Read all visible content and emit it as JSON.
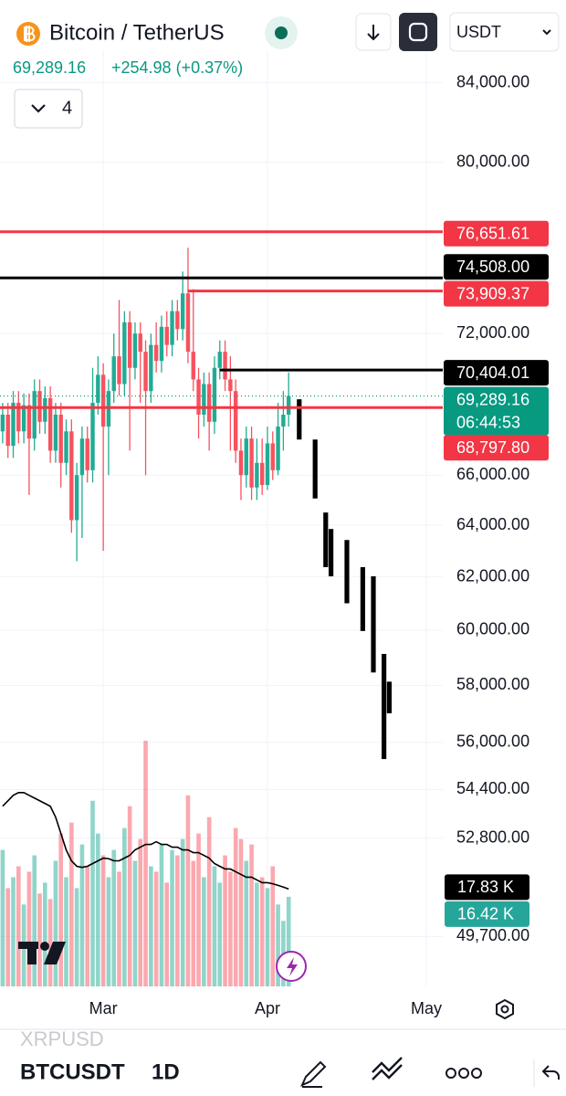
{
  "header": {
    "title": "Bitcoin / TetherUS",
    "price": "69,289.16",
    "change": "+254.98 (+0.37%)",
    "currency": "USDT",
    "indicator_count": "4"
  },
  "toolbar": {
    "symbol": "BTCUSDT",
    "interval": "1D",
    "next_symbol": "XRPUSD"
  },
  "chart_data": {
    "type": "candlestick",
    "log_scale": true,
    "grid": true,
    "up_color": "#22ab94",
    "down_color": "#f7525f",
    "projection_color": "#000000",
    "xlim": [
      -0.5,
      83.1
    ],
    "xticks": [
      {
        "value": 19,
        "label": "Mar"
      },
      {
        "value": 50,
        "label": "Apr"
      },
      {
        "value": 80,
        "label": "May"
      }
    ],
    "ylim": [
      48200,
      85700
    ],
    "yticks": [
      {
        "value": 84000,
        "label": "84,000.00"
      },
      {
        "value": 80000,
        "label": "80,000.00"
      },
      {
        "value": 72000,
        "label": "72,000.00"
      },
      {
        "value": 66000,
        "label": "66,000.00"
      },
      {
        "value": 64000,
        "label": "64,000.00"
      },
      {
        "value": 62000,
        "label": "62,000.00"
      },
      {
        "value": 60000,
        "label": "60,000.00"
      },
      {
        "value": 58000,
        "label": "58,000.00"
      },
      {
        "value": 56000,
        "label": "56,000.00"
      },
      {
        "value": 54400,
        "label": "54,400.00"
      },
      {
        "value": 52800,
        "label": "52,800.00"
      },
      {
        "value": 49700,
        "label": "49,700.00"
      }
    ],
    "ohlc": [
      [
        67800,
        69000,
        67300,
        68500
      ],
      [
        68500,
        69000,
        66700,
        67200
      ],
      [
        67200,
        69500,
        66700,
        69000
      ],
      [
        69000,
        69500,
        67300,
        67800
      ],
      [
        67800,
        69400,
        67300,
        68900
      ],
      [
        68900,
        69400,
        65200,
        67500
      ],
      [
        67500,
        70000,
        67000,
        69500
      ],
      [
        69500,
        70000,
        67700,
        68200
      ],
      [
        68200,
        69700,
        67700,
        69200
      ],
      [
        69200,
        69700,
        66500,
        67000
      ],
      [
        67000,
        69000,
        66500,
        68500
      ],
      [
        68500,
        69000,
        65500,
        66500
      ],
      [
        66500,
        68300,
        66000,
        67800
      ],
      [
        67800,
        68300,
        63700,
        64200
      ],
      [
        64200,
        66500,
        62600,
        66000
      ],
      [
        66000,
        68000,
        63500,
        67500
      ],
      [
        67500,
        68000,
        65700,
        66200
      ],
      [
        66200,
        70500,
        65700,
        69000
      ],
      [
        69000,
        71000,
        68500,
        70200
      ],
      [
        70200,
        70700,
        63000,
        68000
      ],
      [
        68000,
        70000,
        66000,
        69500
      ],
      [
        69500,
        72000,
        69000,
        71000
      ],
      [
        71000,
        73500,
        69300,
        69800
      ],
      [
        69800,
        73000,
        69300,
        72500
      ],
      [
        72500,
        73000,
        67000,
        70500
      ],
      [
        70500,
        72500,
        70000,
        72000
      ],
      [
        72000,
        72500,
        69000,
        71200
      ],
      [
        71200,
        71700,
        66000,
        69500
      ],
      [
        69500,
        72000,
        69000,
        71500
      ],
      [
        71500,
        72500,
        70300,
        70800
      ],
      [
        70800,
        72800,
        70300,
        72300
      ],
      [
        72300,
        73000,
        71000,
        71500
      ],
      [
        71500,
        73500,
        71000,
        73000
      ],
      [
        73000,
        73500,
        71700,
        72200
      ],
      [
        72200,
        74800,
        71700,
        73800
      ],
      [
        73800,
        75900,
        70700,
        71200
      ],
      [
        71200,
        74000,
        69500,
        70000
      ],
      [
        70000,
        70500,
        67500,
        68500
      ],
      [
        68500,
        70300,
        68000,
        69800
      ],
      [
        69800,
        70300,
        67000,
        68200
      ],
      [
        68200,
        71000,
        67700,
        70500
      ],
      [
        70500,
        71700,
        70000,
        71200
      ],
      [
        71200,
        71700,
        69500,
        70000
      ],
      [
        70000,
        71000,
        67000,
        69500
      ],
      [
        69500,
        70000,
        66500,
        67000
      ],
      [
        67000,
        67500,
        65000,
        66000
      ],
      [
        66000,
        68000,
        65500,
        67500
      ],
      [
        67500,
        68000,
        65000,
        65500
      ],
      [
        65500,
        67500,
        65000,
        66500
      ],
      [
        66500,
        67500,
        65200,
        65600
      ],
      [
        65600,
        68000,
        65400,
        67300
      ],
      [
        67300,
        67800,
        65800,
        66200
      ],
      [
        66200,
        69000,
        66000,
        68000
      ],
      [
        68000,
        69500,
        67000,
        68500
      ],
      [
        68500,
        70300,
        68000,
        69289.16
      ]
    ],
    "projection": [
      {
        "x": 56,
        "high": 69150,
        "low": 67460
      },
      {
        "x": 59,
        "high": 67460,
        "low": 65060
      },
      {
        "x": 61,
        "high": 64500,
        "low": 62370
      },
      {
        "x": 62,
        "high": 63850,
        "low": 62020
      },
      {
        "x": 65,
        "high": 63420,
        "low": 61000
      },
      {
        "x": 68,
        "high": 62370,
        "low": 59970
      },
      {
        "x": 70,
        "high": 62020,
        "low": 58460
      },
      {
        "x": 72,
        "high": 59130,
        "low": 55430
      },
      {
        "x": 73,
        "high": 58130,
        "low": 57010
      }
    ],
    "price_lines": [
      {
        "value": 76651.61,
        "label": "76,651.61",
        "color": "#f23645"
      },
      {
        "value": 74508,
        "label": "74,508.00",
        "color": "#000000"
      },
      {
        "value": 73909.37,
        "label": "73,909.37",
        "color": "#f23645",
        "from_x": 35
      },
      {
        "value": 70404.01,
        "label": "70,404.01",
        "color": "#000000",
        "from_x": 41
      },
      {
        "value": 69289.16,
        "label": "69,289.16",
        "countdown": "06:44:53",
        "color": "#089981",
        "dotted": true
      },
      {
        "value": 68797.8,
        "label": "68,797.80",
        "color": "#f23645"
      }
    ],
    "volume": {
      "ylim": [
        0,
        45
      ],
      "ma_color": "#000000",
      "values": [
        25,
        18,
        20,
        22,
        15,
        21,
        24,
        17,
        19,
        16,
        23,
        28,
        20,
        30,
        18,
        26,
        22,
        34,
        28,
        24,
        20,
        25,
        21,
        29,
        33,
        23,
        27,
        45,
        22,
        21,
        26,
        19,
        25,
        24,
        27,
        35,
        23,
        28,
        20,
        31,
        22,
        19,
        24,
        21,
        29,
        27,
        23,
        26,
        19,
        20,
        18,
        22,
        15,
        12,
        16.42
      ],
      "ma": [
        33,
        34,
        35,
        35.5,
        35.5,
        35,
        34.5,
        34,
        33.5,
        33,
        31,
        28,
        25,
        23,
        22,
        21.8,
        22,
        22.5,
        23,
        23.5,
        23.4,
        23,
        23,
        23.5,
        24,
        25,
        25.5,
        26,
        26,
        26.5,
        26,
        26,
        25.5,
        25.5,
        25,
        25,
        24.5,
        24.5,
        24,
        23.5,
        22.5,
        22,
        21.5,
        21.5,
        21,
        20.5,
        20,
        20,
        19.5,
        19,
        19,
        18.8,
        18.5,
        18.2,
        17.83
      ],
      "tags": [
        {
          "value": 17.83,
          "label": "17.83 K",
          "color": "#000000"
        },
        {
          "value": 16.42,
          "label": "16.42 K",
          "color": "#26a69a"
        }
      ]
    }
  }
}
